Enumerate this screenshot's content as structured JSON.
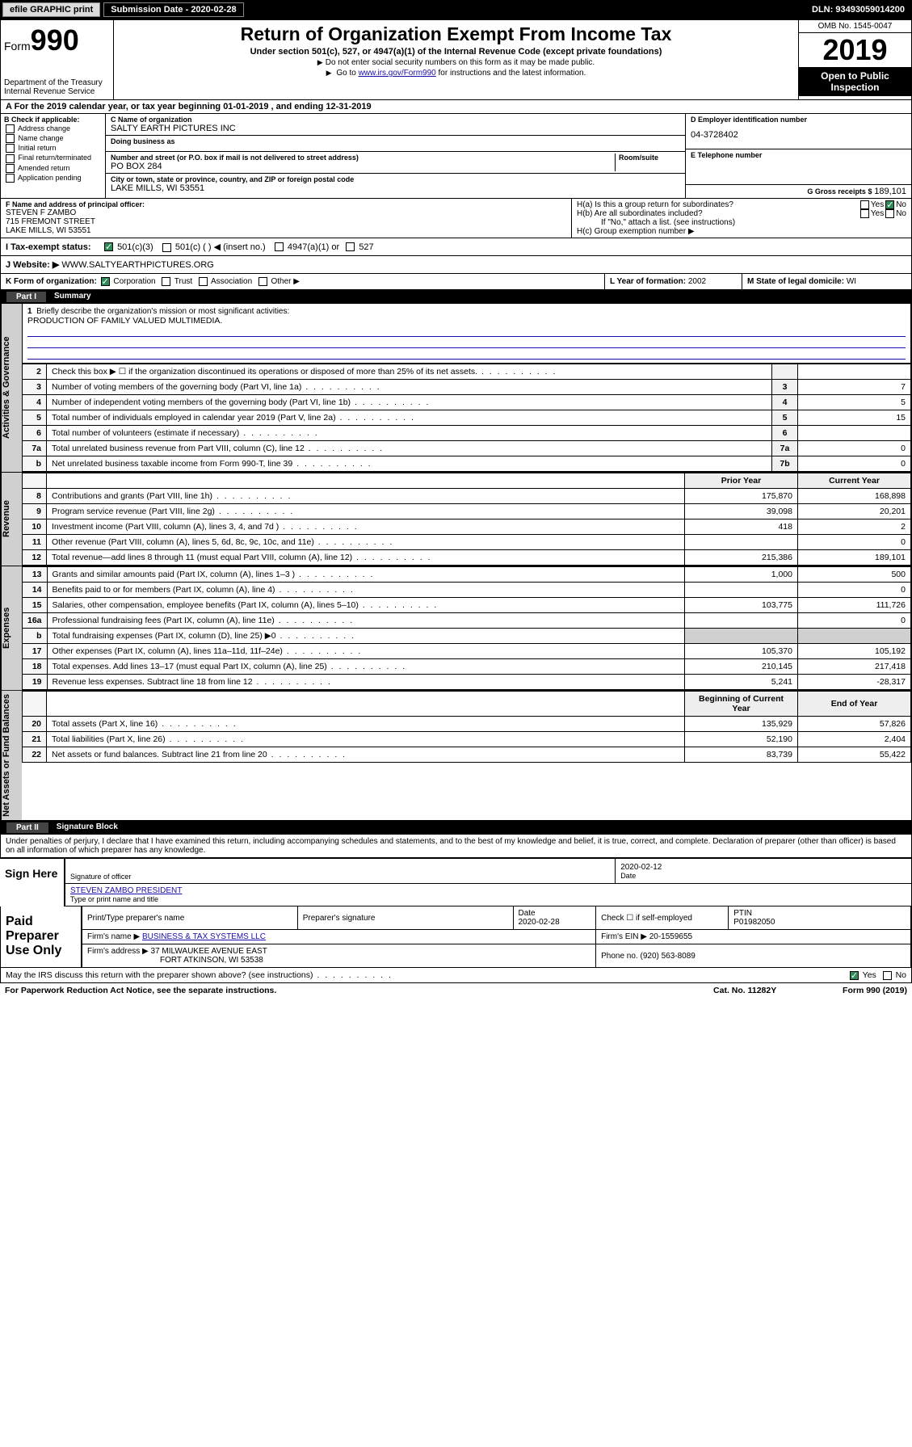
{
  "topbar": {
    "efile": "efile GRAPHIC print",
    "submission_label": "Submission Date - 2020-02-28",
    "dln": "DLN: 93493059014200"
  },
  "header": {
    "form_label": "Form",
    "form_num": "990",
    "dept": "Department of the Treasury",
    "irs": "Internal Revenue Service",
    "title": "Return of Organization Exempt From Income Tax",
    "subtitle": "Under section 501(c), 527, or 4947(a)(1) of the Internal Revenue Code (except private foundations)",
    "note1": "Do not enter social security numbers on this form as it may be made public.",
    "note2_pre": "Go to ",
    "note2_link": "www.irs.gov/Form990",
    "note2_post": " for instructions and the latest information.",
    "omb": "OMB No. 1545-0047",
    "year": "2019",
    "open_public": "Open to Public Inspection"
  },
  "line_a": "A For the 2019 calendar year, or tax year beginning 01-01-2019   , and ending 12-31-2019",
  "section_b": {
    "label": "B Check if applicable:",
    "opts": [
      "Address change",
      "Name change",
      "Initial return",
      "Final return/terminated",
      "Amended return",
      "Application pending"
    ]
  },
  "section_c": {
    "name_label": "C Name of organization",
    "name": "SALTY EARTH PICTURES INC",
    "dba_label": "Doing business as",
    "dba": "",
    "street_label": "Number and street (or P.O. box if mail is not delivered to street address)",
    "street": "PO BOX 284",
    "room_label": "Room/suite",
    "city_label": "City or town, state or province, country, and ZIP or foreign postal code",
    "city": "LAKE MILLS, WI  53551"
  },
  "section_d": {
    "label": "D Employer identification number",
    "value": "04-3728402"
  },
  "section_e": {
    "label": "E Telephone number",
    "value": ""
  },
  "section_g": {
    "label": "G Gross receipts $",
    "value": "189,101"
  },
  "section_f": {
    "label": "F  Name and address of principal officer:",
    "name": "STEVEN F ZAMBO",
    "addr1": "715 FREMONT STREET",
    "addr2": "LAKE MILLS, WI  53551"
  },
  "section_h": {
    "ha": "H(a)  Is this a group return for subordinates?",
    "hb": "H(b)  Are all subordinates included?",
    "hb_note": "If \"No,\" attach a list. (see instructions)",
    "hc": "H(c)  Group exemption number ▶",
    "yes": "Yes",
    "no": "No"
  },
  "section_i": {
    "label": "I     Tax-exempt status:",
    "o1": "501(c)(3)",
    "o2": "501(c) (  ) ◀ (insert no.)",
    "o3": "4947(a)(1) or",
    "o4": "527"
  },
  "section_j": {
    "label": "J    Website: ▶",
    "value": "WWW.SALTYEARTHPICTURES.ORG"
  },
  "section_k": {
    "label": "K Form of organization:",
    "o1": "Corporation",
    "o2": "Trust",
    "o3": "Association",
    "o4": "Other ▶"
  },
  "section_l": {
    "label": "L Year of formation:",
    "value": "2002"
  },
  "section_m": {
    "label": "M State of legal domicile:",
    "value": "WI"
  },
  "part1": {
    "num": "Part I",
    "title": "Summary"
  },
  "mission": {
    "num": "1",
    "label": "Briefly describe the organization's mission or most significant activities:",
    "text": "PRODUCTION OF FAMILY VALUED MULTIMEDIA."
  },
  "gov_rows": [
    {
      "n": "2",
      "t": "Check this box ▶ ☐  if the organization discontinued its operations or disposed of more than 25% of its net assets.",
      "lbl": "",
      "v": ""
    },
    {
      "n": "3",
      "t": "Number of voting members of the governing body (Part VI, line 1a)",
      "lbl": "3",
      "v": "7"
    },
    {
      "n": "4",
      "t": "Number of independent voting members of the governing body (Part VI, line 1b)",
      "lbl": "4",
      "v": "5"
    },
    {
      "n": "5",
      "t": "Total number of individuals employed in calendar year 2019 (Part V, line 2a)",
      "lbl": "5",
      "v": "15"
    },
    {
      "n": "6",
      "t": "Total number of volunteers (estimate if necessary)",
      "lbl": "6",
      "v": ""
    },
    {
      "n": "7a",
      "t": "Total unrelated business revenue from Part VIII, column (C), line 12",
      "lbl": "7a",
      "v": "0"
    },
    {
      "n": "b",
      "t": "Net unrelated business taxable income from Form 990-T, line 39",
      "lbl": "7b",
      "v": "0"
    }
  ],
  "side_labels": {
    "gov": "Activities & Governance",
    "rev": "Revenue",
    "exp": "Expenses",
    "net": "Net Assets or Fund Balances"
  },
  "col_headers": {
    "prior": "Prior Year",
    "current": "Current Year",
    "beg": "Beginning of Current Year",
    "end": "End of Year"
  },
  "rev_rows": [
    {
      "n": "8",
      "t": "Contributions and grants (Part VIII, line 1h)",
      "p": "175,870",
      "c": "168,898"
    },
    {
      "n": "9",
      "t": "Program service revenue (Part VIII, line 2g)",
      "p": "39,098",
      "c": "20,201"
    },
    {
      "n": "10",
      "t": "Investment income (Part VIII, column (A), lines 3, 4, and 7d )",
      "p": "418",
      "c": "2"
    },
    {
      "n": "11",
      "t": "Other revenue (Part VIII, column (A), lines 5, 6d, 8c, 9c, 10c, and 11e)",
      "p": "",
      "c": "0"
    },
    {
      "n": "12",
      "t": "Total revenue—add lines 8 through 11 (must equal Part VIII, column (A), line 12)",
      "p": "215,386",
      "c": "189,101"
    }
  ],
  "exp_rows": [
    {
      "n": "13",
      "t": "Grants and similar amounts paid (Part IX, column (A), lines 1–3 )",
      "p": "1,000",
      "c": "500"
    },
    {
      "n": "14",
      "t": "Benefits paid to or for members (Part IX, column (A), line 4)",
      "p": "",
      "c": "0"
    },
    {
      "n": "15",
      "t": "Salaries, other compensation, employee benefits (Part IX, column (A), lines 5–10)",
      "p": "103,775",
      "c": "111,726"
    },
    {
      "n": "16a",
      "t": "Professional fundraising fees (Part IX, column (A), line 11e)",
      "p": "",
      "c": "0"
    },
    {
      "n": "b",
      "t": "Total fundraising expenses (Part IX, column (D), line 25) ▶0",
      "p": "__shade__",
      "c": "__shade__"
    },
    {
      "n": "17",
      "t": "Other expenses (Part IX, column (A), lines 11a–11d, 11f–24e)",
      "p": "105,370",
      "c": "105,192"
    },
    {
      "n": "18",
      "t": "Total expenses. Add lines 13–17 (must equal Part IX, column (A), line 25)",
      "p": "210,145",
      "c": "217,418"
    },
    {
      "n": "19",
      "t": "Revenue less expenses. Subtract line 18 from line 12",
      "p": "5,241",
      "c": "-28,317"
    }
  ],
  "net_rows": [
    {
      "n": "20",
      "t": "Total assets (Part X, line 16)",
      "p": "135,929",
      "c": "57,826"
    },
    {
      "n": "21",
      "t": "Total liabilities (Part X, line 26)",
      "p": "52,190",
      "c": "2,404"
    },
    {
      "n": "22",
      "t": "Net assets or fund balances. Subtract line 21 from line 20",
      "p": "83,739",
      "c": "55,422"
    }
  ],
  "part2": {
    "num": "Part II",
    "title": "Signature Block"
  },
  "penalties": "Under penalties of perjury, I declare that I have examined this return, including accompanying schedules and statements, and to the best of my knowledge and belief, it is true, correct, and complete. Declaration of preparer (other than officer) is based on all information of which preparer has any knowledge.",
  "sign": {
    "here": "Sign Here",
    "sig_label": "Signature of officer",
    "date_label": "Date",
    "date": "2020-02-12",
    "name_line": "STEVEN ZAMBO PRESIDENT",
    "name_label": "Type or print name and title"
  },
  "paid": {
    "title": "Paid Preparer Use Only",
    "h1": "Print/Type preparer's name",
    "h2": "Preparer's signature",
    "h3": "Date",
    "h3v": "2020-02-28",
    "h4": "Check ☐ if self-employed",
    "h5": "PTIN",
    "h5v": "P01982050",
    "firm_label": "Firm's name    ▶",
    "firm": "BUSINESS & TAX SYSTEMS LLC",
    "ein_label": "Firm's EIN ▶",
    "ein": "20-1559655",
    "addr_label": "Firm's address ▶",
    "addr1": "37 MILWAUKEE AVENUE EAST",
    "addr2": "FORT ATKINSON, WI  53538",
    "phone_label": "Phone no.",
    "phone": "(920) 563-8089"
  },
  "discuss": {
    "text": "May the IRS discuss this return with the preparer shown above? (see instructions)",
    "yes": "Yes",
    "no": "No"
  },
  "footer": {
    "pra": "For Paperwork Reduction Act Notice, see the separate instructions.",
    "cat": "Cat. No. 11282Y",
    "form": "Form 990 (2019)"
  },
  "colors": {
    "black": "#000000",
    "white": "#ffffff",
    "gray_bg": "#d0d0d0",
    "link": "#1a0dab",
    "check_green": "#2e8b57",
    "light_gray": "#dcdcdc"
  }
}
